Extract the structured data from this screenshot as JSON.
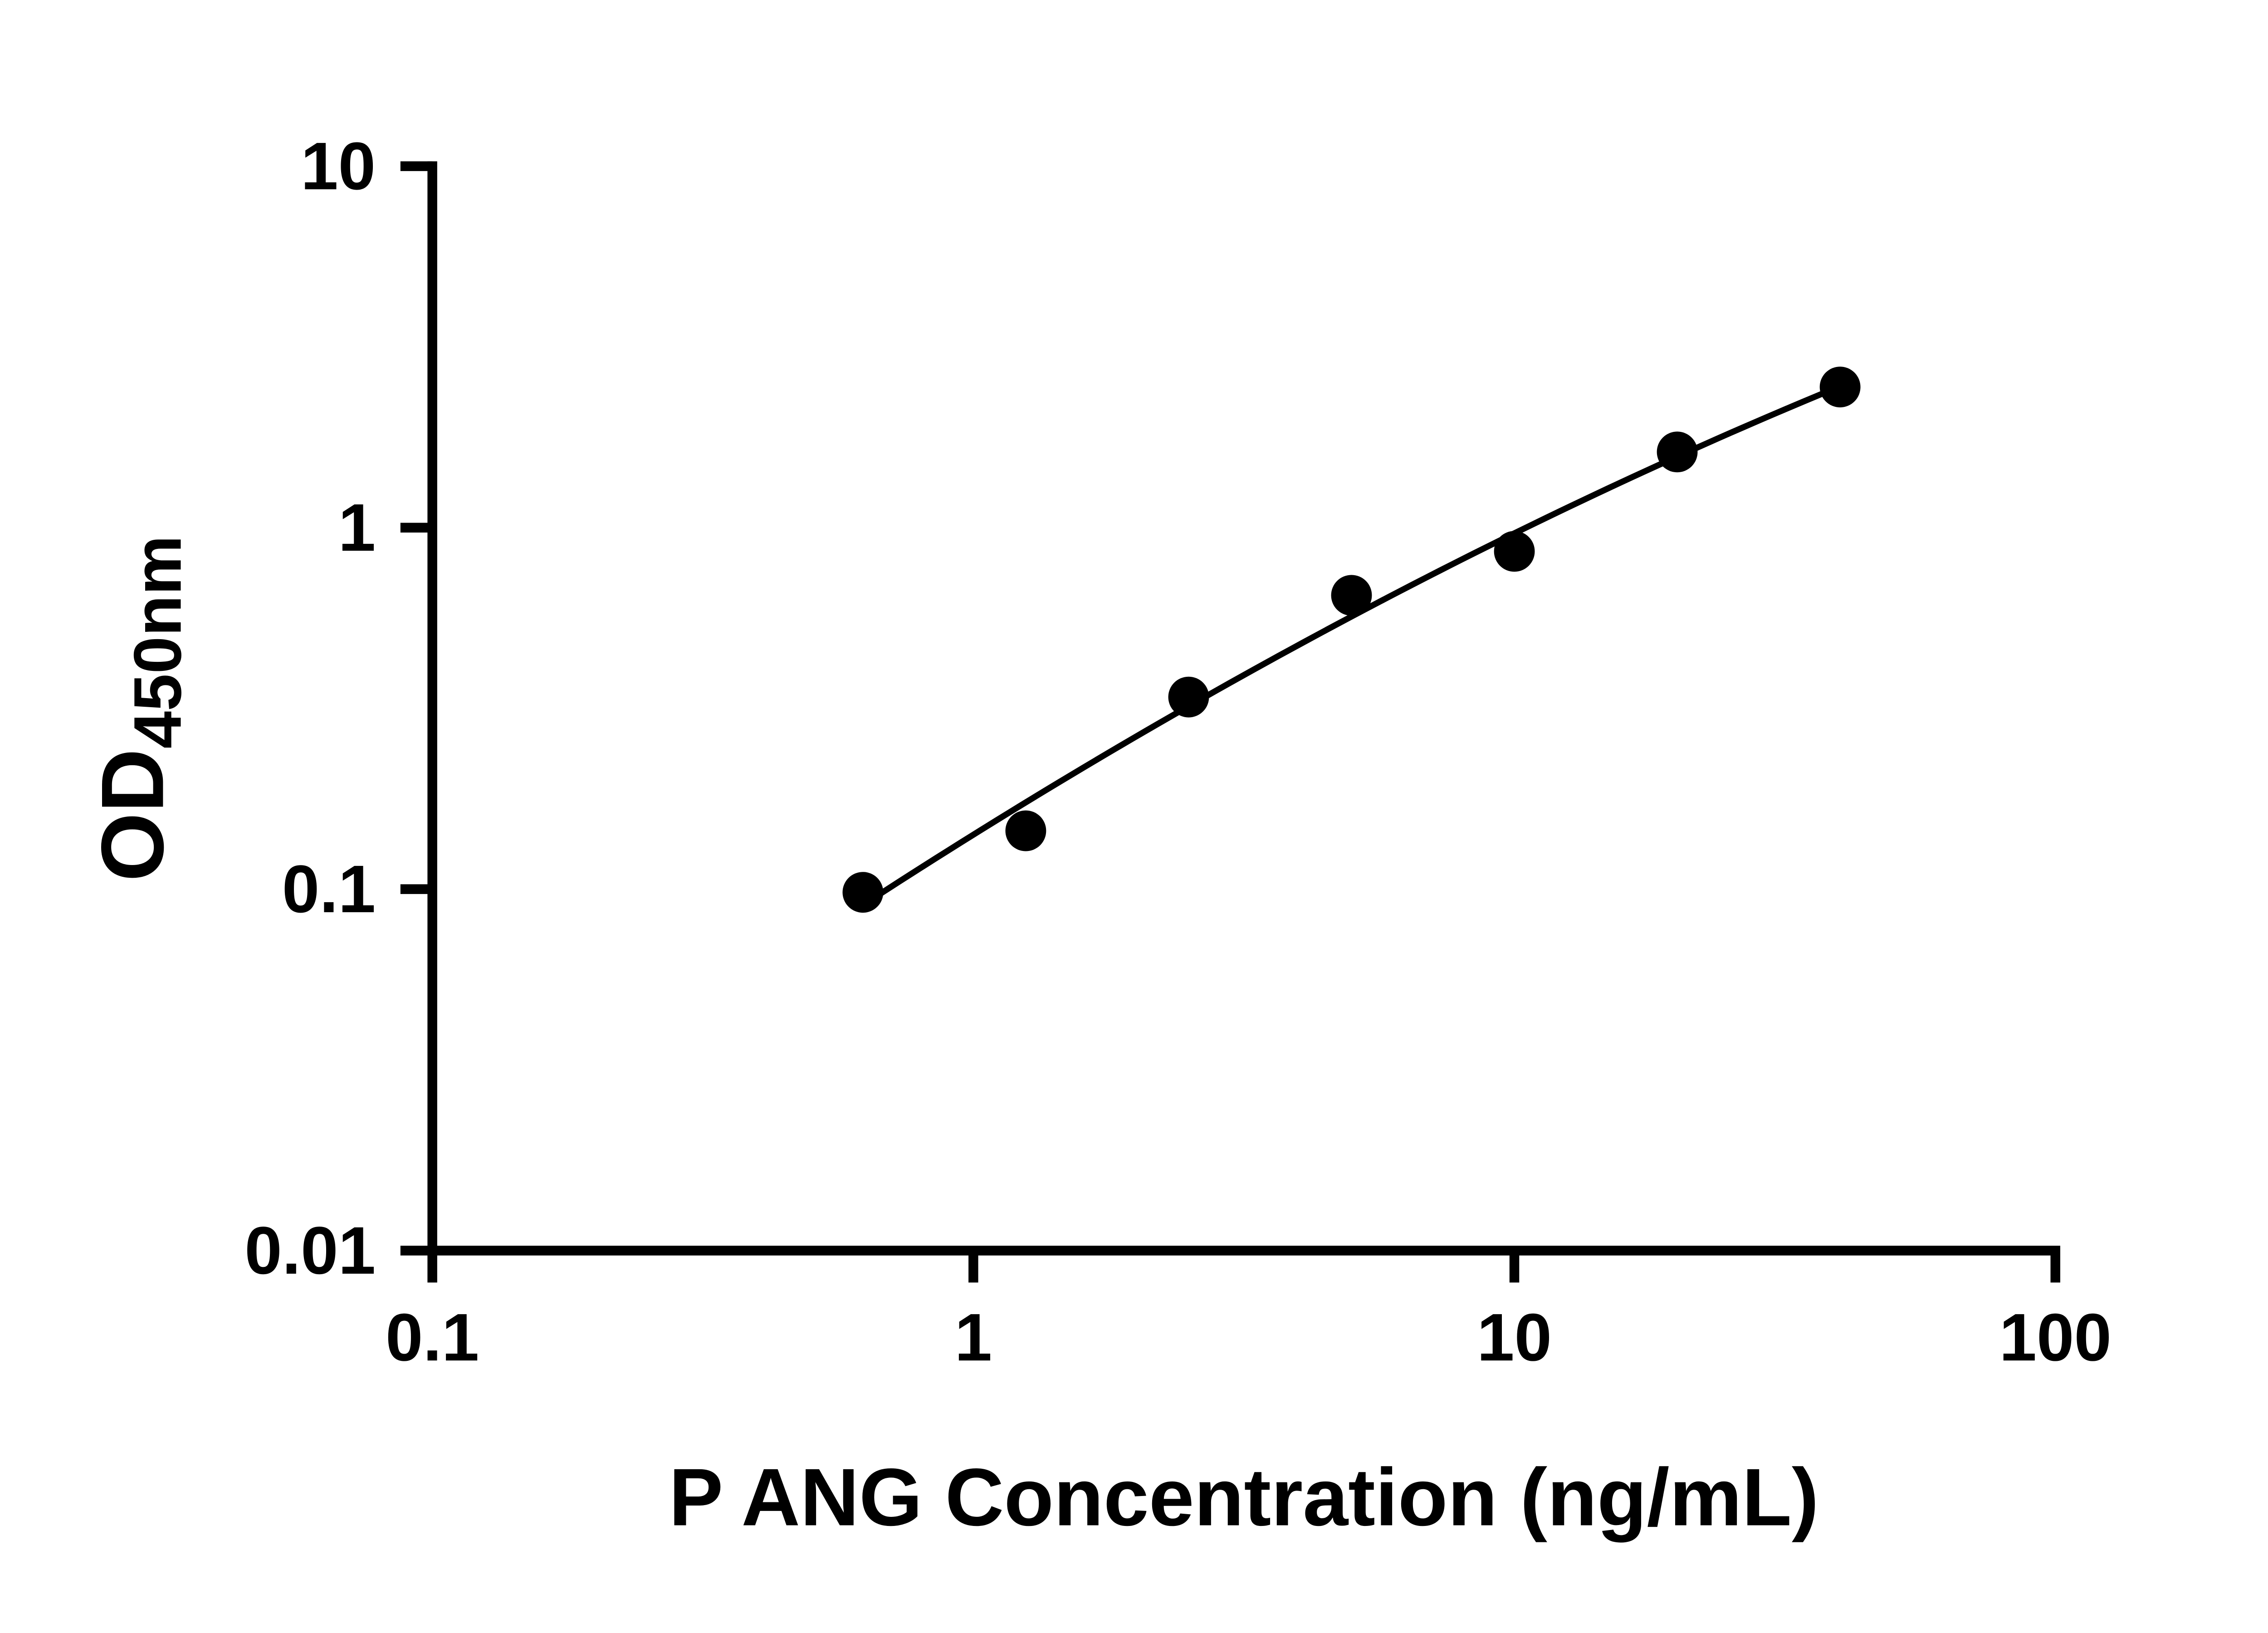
{
  "page": {
    "background_color": "#ffffff",
    "foreground_color": "#000000"
  },
  "chart_data": {
    "type": "scatter",
    "title": "",
    "xlabel": "P ANG Concentration (ng/mL)",
    "ylabel_main": "OD",
    "ylabel_sub": "450nm",
    "x_scale": "log10",
    "y_scale": "log10",
    "xlim": [
      0.1,
      100
    ],
    "ylim": [
      0.01,
      10
    ],
    "grid": false,
    "legend": "none",
    "x_ticks": [
      {
        "value": 0.1,
        "label": "0.1"
      },
      {
        "value": 1,
        "label": "1"
      },
      {
        "value": 10,
        "label": "10"
      },
      {
        "value": 100,
        "label": "100"
      }
    ],
    "y_ticks": [
      {
        "value": 0.01,
        "label": "0.01"
      },
      {
        "value": 0.1,
        "label": "0.1"
      },
      {
        "value": 1,
        "label": "1"
      },
      {
        "value": 10,
        "label": "10"
      }
    ],
    "series": [
      {
        "name": "standard-curve-points",
        "marker": "circle",
        "color": "#000000",
        "points": [
          {
            "x": 0.625,
            "y": 0.098
          },
          {
            "x": 1.25,
            "y": 0.145
          },
          {
            "x": 2.5,
            "y": 0.34
          },
          {
            "x": 5,
            "y": 0.65
          },
          {
            "x": 10,
            "y": 0.86
          },
          {
            "x": 20,
            "y": 1.62
          },
          {
            "x": 40,
            "y": 2.45
          }
        ]
      }
    ],
    "fit_curve": {
      "type": "quadratic_loglog",
      "equation": "log10(y) = a + b*log10(x) + c*log10(x)^2",
      "a": -0.8494,
      "b": 0.9326,
      "c": -0.0988,
      "x_domain": [
        0.625,
        40
      ],
      "color": "#000000"
    }
  }
}
